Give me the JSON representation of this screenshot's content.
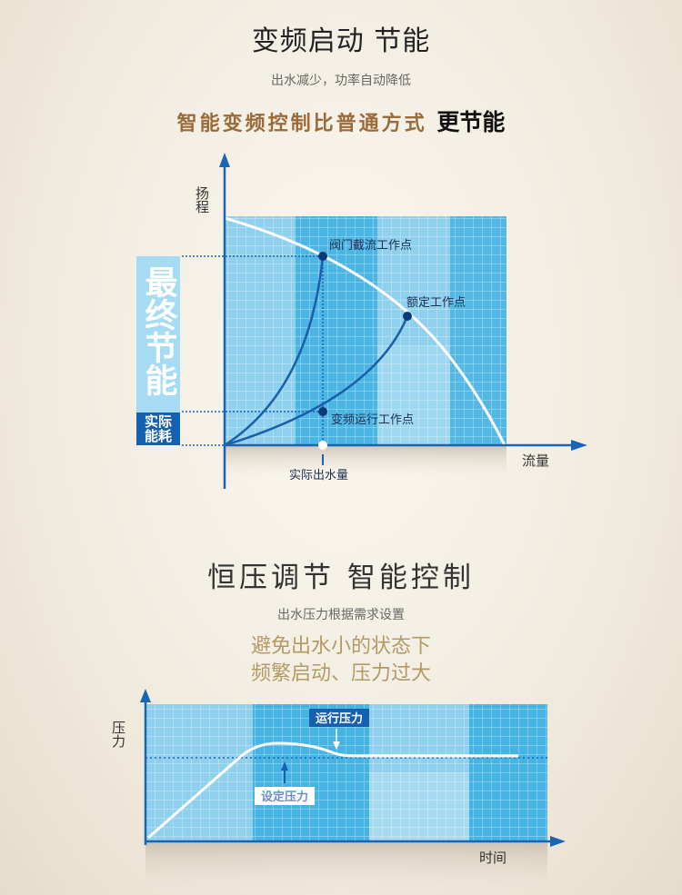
{
  "section1": {
    "title": "变频启动 节能",
    "subtitle": "出水减少，功率自动降低",
    "highlight": "智能变频控制比普通方式",
    "highlight_bold": "更节能",
    "diagram": {
      "y_axis_label": "扬程",
      "x_axis_label": "流量",
      "point_valve": "阀门截流工作点",
      "point_rated": "额定工作点",
      "point_vfd": "变频运行工作点",
      "actual_flow": "实际出水量",
      "badge_final": "最终节能",
      "badge_actual": "实际能耗"
    }
  },
  "section2": {
    "title": "恒压调节 智能控制",
    "subtitle": "出水压力根据需求设置",
    "highlight_line1": "避免出水小的状态下",
    "highlight_line2": "频繁启动、压力过大",
    "diagram": {
      "y_axis_label": "压力",
      "x_axis_label": "时间",
      "running_pressure": "运行压力",
      "set_pressure": "设定压力"
    }
  },
  "colors": {
    "axis": "#1a64b4",
    "grid_light": "#8fd0ee",
    "grid_dark": "#3aaee3",
    "point": "#0d3a78",
    "accent_text": "#9a6b3a"
  }
}
